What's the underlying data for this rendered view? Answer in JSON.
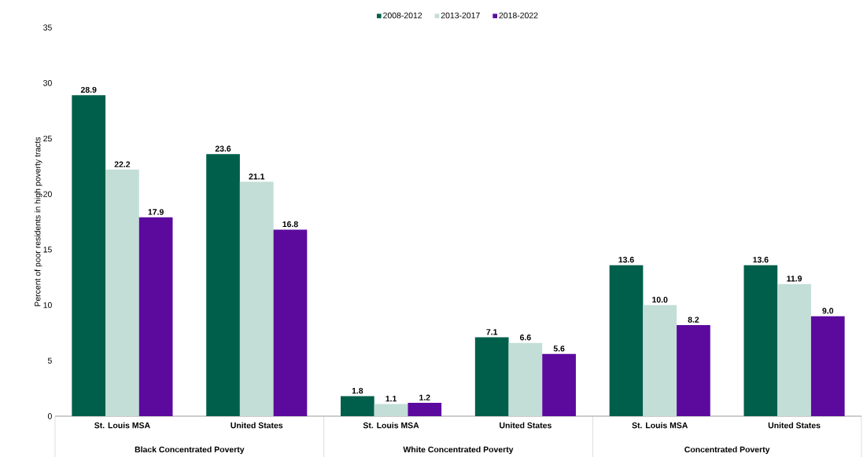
{
  "chart_data": {
    "type": "bar",
    "ylabel": "Percent of poor residents in high poverty tracts",
    "categories": [
      "St. Louis MSA",
      "United States",
      "St. Louis MSA",
      "United States",
      "St. Louis MSA",
      "United States"
    ],
    "series": [
      {
        "name": "2008-2012",
        "color": "#005f4b",
        "values": [
          28.9,
          23.6,
          1.8,
          7.1,
          13.6,
          13.6
        ],
        "value_labels": [
          "28.9",
          "23.6",
          "1.8",
          "7.1",
          "13.6",
          "13.6"
        ]
      },
      {
        "name": "2013-2017",
        "color": "#c3ded6",
        "values": [
          22.2,
          21.1,
          1.1,
          6.6,
          10.0,
          11.9
        ],
        "value_labels": [
          "22.2",
          "21.1",
          "1.1",
          "6.6",
          "10.0",
          "11.9"
        ]
      },
      {
        "name": "2018-2022",
        "color": "#5c0a9e",
        "values": [
          17.9,
          16.8,
          1.2,
          5.6,
          8.2,
          9.0
        ],
        "value_labels": [
          "17.9",
          "16.8",
          "1.2",
          "5.6",
          "8.2",
          "9.0"
        ]
      }
    ],
    "annotations": [
      "Black Concentrated Poverty",
      "White Concentrated Poverty",
      "Concentrated Poverty"
    ],
    "ylim": [
      0,
      35
    ],
    "yticks": [
      0,
      5,
      10,
      15,
      20,
      25,
      30,
      35
    ],
    "legend": "top",
    "grid": false
  }
}
